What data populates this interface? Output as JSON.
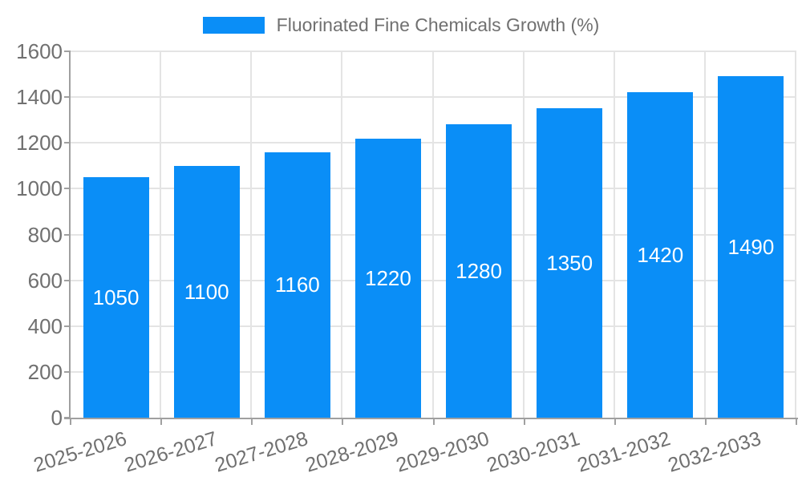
{
  "legend": {
    "label": "Fluorinated Fine Chemicals Growth (%)",
    "swatch_color": "#0a8ef7"
  },
  "chart_data": {
    "type": "bar",
    "title": "",
    "xlabel": "",
    "ylabel": "",
    "categories": [
      "2025-2026",
      "2026-2027",
      "2027-2028",
      "2028-2029",
      "2029-2030",
      "2030-2031",
      "2031-2032",
      "2032-2033"
    ],
    "series": [
      {
        "name": "Fluorinated Fine Chemicals Growth (%)",
        "values": [
          1050,
          1100,
          1160,
          1220,
          1280,
          1350,
          1420,
          1490
        ]
      }
    ],
    "value_labels_shown": true,
    "ylim": [
      0,
      1600
    ],
    "yticks": [
      0,
      200,
      400,
      600,
      800,
      1000,
      1200,
      1400,
      1600
    ],
    "grid": true,
    "legend_position": "top-center",
    "x_label_rotation_deg": -17,
    "colors": {
      "bar": "#0a8ef7",
      "value_label": "#ffffff",
      "grid": "#e4e4e4",
      "axis_line": "#a0a0a0",
      "axis_text": "#707070",
      "background": "#ffffff"
    }
  }
}
